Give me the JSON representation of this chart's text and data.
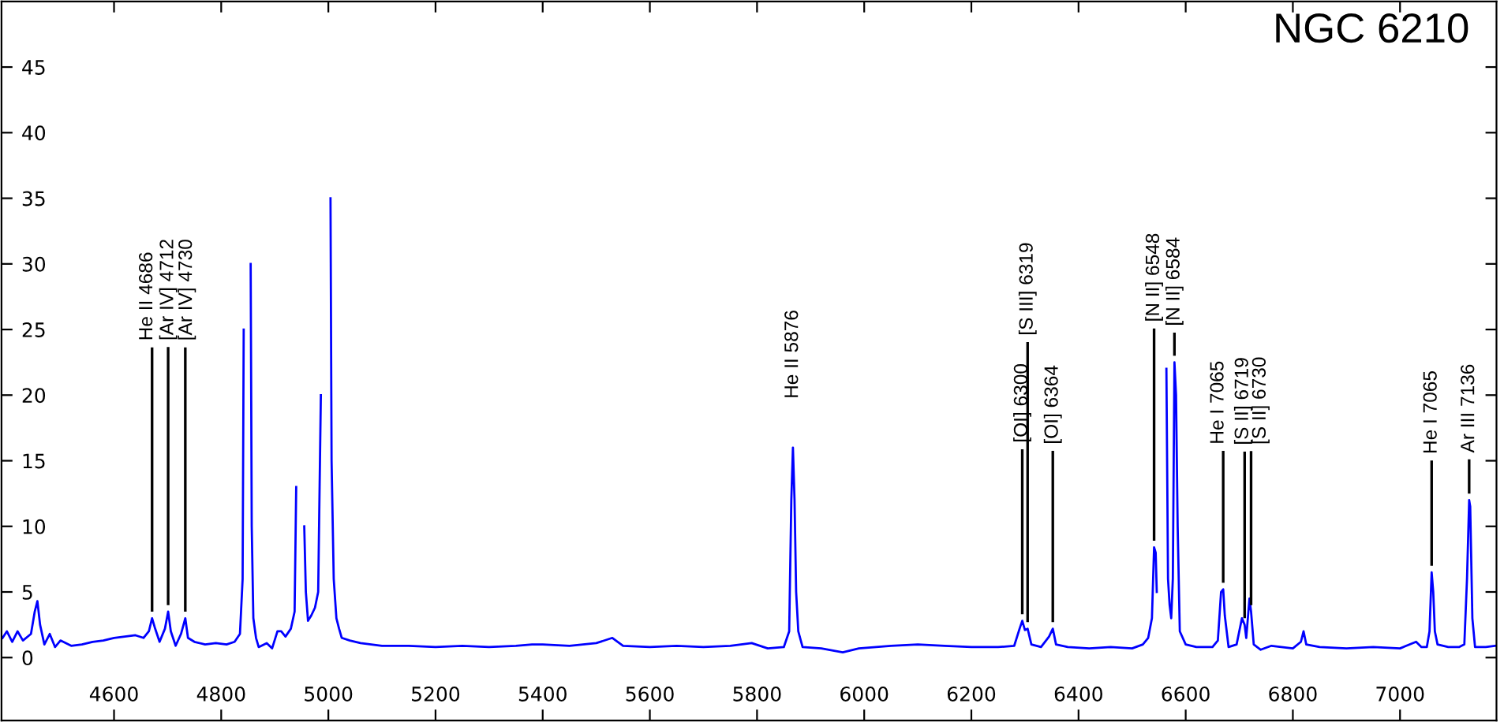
{
  "chart_data": {
    "type": "line",
    "title": "NGC 6210",
    "xlim": [
      4390,
      7180
    ],
    "ylim": [
      -4.8,
      50
    ],
    "xticks": [
      4600,
      4800,
      5000,
      5200,
      5400,
      5600,
      5800,
      6000,
      6200,
      6400,
      6600,
      6800,
      7000
    ],
    "yticks": [
      0,
      5,
      10,
      15,
      20,
      25,
      30,
      35,
      40,
      45
    ],
    "x": [
      4392,
      4400,
      4410,
      4420,
      4430,
      4445,
      4452,
      4457,
      4462,
      4470,
      4480,
      4490,
      4500,
      4520,
      4540,
      4560,
      4580,
      4600,
      4620,
      4640,
      4655,
      4665,
      4671,
      4676,
      4685,
      4695,
      4701,
      4706,
      4715,
      4725,
      4733,
      4738,
      4750,
      4770,
      4790,
      4810,
      4825,
      4835,
      4840,
      4842,
      4844,
      4853,
      4855,
      4857,
      4860,
      4865,
      4870,
      4885,
      4895,
      4905,
      4912,
      4920,
      4930,
      4937,
      4940,
      4942,
      4953,
      4955,
      4958,
      4962,
      4968,
      4975,
      4981,
      4986,
      4988,
      5002,
      5004,
      5006,
      5010,
      5015,
      5020,
      5025,
      5040,
      5060,
      5080,
      5100,
      5150,
      5200,
      5250,
      5300,
      5350,
      5380,
      5400,
      5450,
      5500,
      5530,
      5550,
      5600,
      5650,
      5700,
      5750,
      5790,
      5820,
      5850,
      5860,
      5864,
      5867,
      5870,
      5873,
      5877,
      5885,
      5920,
      5960,
      5990,
      6050,
      6100,
      6150,
      6200,
      6250,
      6280,
      6290,
      6295,
      6300,
      6305,
      6312,
      6330,
      6345,
      6352,
      6358,
      6380,
      6420,
      6460,
      6500,
      6520,
      6530,
      6537,
      6541,
      6544,
      6546,
      6549,
      6562,
      6564,
      6567,
      6570,
      6573,
      6576,
      6579,
      6582,
      6585,
      6589,
      6600,
      6620,
      6650,
      6660,
      6666,
      6670,
      6673,
      6680,
      6695,
      6705,
      6710,
      6713,
      6719,
      6722,
      6727,
      6740,
      6760,
      6800,
      6815,
      6820,
      6825,
      6850,
      6900,
      6950,
      7000,
      7030,
      7040,
      7050,
      7055,
      7059,
      7062,
      7065,
      7070,
      7090,
      7110,
      7120,
      7125,
      7129,
      7131,
      7135,
      7140,
      7160,
      7178
    ],
    "series": [
      {
        "color": "#0000ff",
        "values": [
          1.5,
          2.0,
          1.2,
          2.0,
          1.3,
          1.8,
          3.5,
          4.3,
          2.5,
          1.0,
          1.8,
          0.8,
          1.3,
          0.9,
          1.0,
          1.2,
          1.3,
          1.5,
          1.6,
          1.7,
          1.5,
          2.0,
          3.0,
          2.3,
          1.2,
          2.2,
          3.5,
          2.0,
          0.9,
          1.8,
          3.0,
          1.5,
          1.2,
          1.0,
          1.1,
          1.0,
          1.2,
          1.8,
          6,
          25,
          null,
          null,
          30,
          10,
          3,
          1.5,
          0.8,
          1.1,
          0.7,
          2.0,
          2.0,
          1.6,
          2.2,
          3.5,
          13,
          null,
          null,
          10,
          5,
          2.8,
          3.2,
          3.8,
          5,
          20,
          null,
          null,
          35,
          15,
          6,
          3,
          2.2,
          1.5,
          1.3,
          1.1,
          1.0,
          0.9,
          0.9,
          0.8,
          0.9,
          0.8,
          0.9,
          1.0,
          1.0,
          0.9,
          1.1,
          1.5,
          0.9,
          0.8,
          0.9,
          0.8,
          0.9,
          1.1,
          0.7,
          0.8,
          2.0,
          12,
          16,
          12,
          5,
          2,
          0.8,
          0.7,
          0.4,
          0.7,
          0.9,
          1.0,
          0.9,
          0.8,
          0.8,
          0.9,
          2.2,
          2.8,
          2.1,
          2.2,
          1.0,
          0.8,
          1.6,
          2.2,
          1.0,
          0.8,
          0.7,
          0.8,
          0.7,
          1.0,
          1.5,
          3,
          8.4,
          8,
          5,
          null,
          null,
          22,
          6,
          4,
          3,
          6,
          22.5,
          20,
          10,
          2,
          1.0,
          0.8,
          0.8,
          1.3,
          5,
          5.2,
          3.2,
          0.8,
          1.0,
          3.0,
          2.5,
          1.5,
          4.5,
          3.5,
          1.0,
          0.6,
          0.9,
          0.7,
          1.2,
          2.0,
          1.0,
          0.8,
          0.7,
          0.8,
          0.7,
          1.2,
          0.8,
          0.8,
          2.0,
          6.5,
          5,
          2.0,
          1.0,
          0.8,
          0.8,
          1.0,
          6,
          12,
          11.5,
          3,
          0.8,
          0.8,
          0.9
        ]
      }
    ],
    "annotations": [
      {
        "text": "He II 4686",
        "x": 4671,
        "y": 3.0
      },
      {
        "text": "[Ar IV] 4712",
        "x": 4701,
        "y": 3.5
      },
      {
        "text": "[Ar IV] 4730",
        "x": 4733,
        "y": 3.0
      },
      {
        "text": "He II 5876",
        "x": 5867,
        "y": 16
      },
      {
        "text": "[OI] 6300",
        "x": 6295,
        "y": 2.8
      },
      {
        "text": "[S III] 6319",
        "x": 6305,
        "y": 2.2
      },
      {
        "text": "[OI] 6364",
        "x": 6352,
        "y": 2.2
      },
      {
        "text": "[N II] 6548",
        "x": 6541,
        "y": 8.4
      },
      {
        "text": "[N II] 6584",
        "x": 6579,
        "y": 22.5
      },
      {
        "text": "He I 7065",
        "x": 6670,
        "y": 5.2
      },
      {
        "text": "[S II] 6719",
        "x": 6710,
        "y": 2.5
      },
      {
        "text": "[S II] 6730",
        "x": 6722,
        "y": 3.5
      },
      {
        "text": "He I 7065",
        "x": 7059,
        "y": 6.5
      },
      {
        "text": "Ar III 7136",
        "x": 7129,
        "y": 12
      }
    ]
  }
}
